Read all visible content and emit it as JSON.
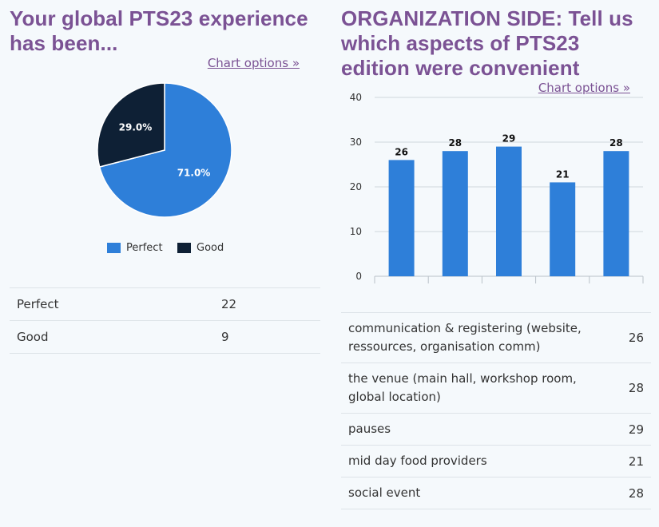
{
  "left": {
    "title": "Your global PTS23 experience has been...",
    "chart_options_label": "Chart options »",
    "legend": [
      {
        "label": "Perfect",
        "color": "#2e7fd9"
      },
      {
        "label": "Good",
        "color": "#0e2035"
      }
    ],
    "rows": [
      {
        "label": "Perfect",
        "value": "22"
      },
      {
        "label": "Good",
        "value": "9"
      }
    ]
  },
  "right": {
    "title": "ORGANIZATION SIDE: Tell us which aspects of PTS23 edition were convenient",
    "chart_options_label": "Chart options »",
    "rows": [
      {
        "label": "communication & registering (website, ressources, organisation comm)",
        "value": "26"
      },
      {
        "label": "the venue (main hall, workshop room, global location)",
        "value": "28"
      },
      {
        "label": "pauses",
        "value": "29"
      },
      {
        "label": "mid day food providers",
        "value": "21"
      },
      {
        "label": "social event",
        "value": "28"
      }
    ]
  },
  "chart_data": [
    {
      "type": "pie",
      "title": "Your global PTS23 experience has been...",
      "categories": [
        "Perfect",
        "Good"
      ],
      "values": [
        22,
        9
      ],
      "percent_labels": [
        "71.0%",
        "29.0%"
      ],
      "colors": [
        "#2e7fd9",
        "#0e2035"
      ],
      "legend": "bottom"
    },
    {
      "type": "bar",
      "title": "ORGANIZATION SIDE: Tell us which aspects of PTS23 edition were convenient",
      "categories": [
        "communication & registering (website, ressources, organisation comm)",
        "the venue (main hall, workshop room, global location)",
        "pauses",
        "mid day food providers",
        "social event"
      ],
      "values": [
        26,
        28,
        29,
        21,
        28
      ],
      "ylim": [
        0,
        40
      ],
      "yticks": [
        "0",
        "10",
        "20",
        "30",
        "40"
      ],
      "color": "#2e7fd9",
      "grid": true
    }
  ]
}
